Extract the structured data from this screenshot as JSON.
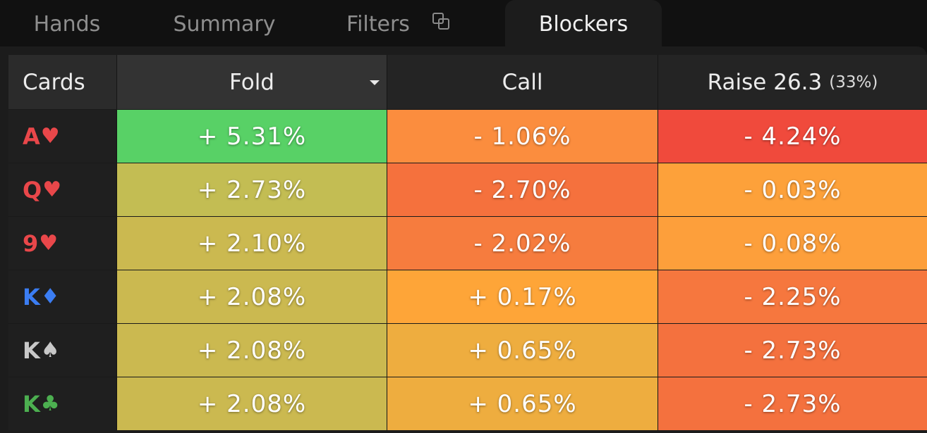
{
  "tabs": [
    {
      "label": "Hands"
    },
    {
      "label": "Summary"
    },
    {
      "label": "Filters"
    },
    {
      "label": "Blockers"
    }
  ],
  "active_tab": "Blockers",
  "table": {
    "headers": {
      "cards": "Cards",
      "fold": "Fold",
      "call": "Call",
      "raise": "Raise 26.3",
      "raise_pct": "(33%)"
    },
    "rows": [
      {
        "rank": "A",
        "suit": "♥",
        "suit_color": "#e9474a",
        "fold": "+ 5.31%",
        "call": "- 1.06%",
        "raise": "- 4.24%",
        "fold_bg": "#58d166",
        "call_bg": "#fb8d3e",
        "raise_bg": "#f04a3c"
      },
      {
        "rank": "Q",
        "suit": "♥",
        "suit_color": "#e9474a",
        "fold": "+ 2.73%",
        "call": "- 2.70%",
        "raise": "- 0.03%",
        "fold_bg": "#c3bd53",
        "call_bg": "#f5713d",
        "raise_bg": "#fda13a"
      },
      {
        "rank": "9",
        "suit": "♥",
        "suit_color": "#e9474a",
        "fold": "+ 2.10%",
        "call": "- 2.02%",
        "raise": "- 0.08%",
        "fold_bg": "#cbb950",
        "call_bg": "#f67c3e",
        "raise_bg": "#fd9f3b"
      },
      {
        "rank": "K",
        "suit": "♦",
        "suit_color": "#3b7df2",
        "fold": "+ 2.08%",
        "call": "+ 0.17%",
        "raise": "- 2.25%",
        "fold_bg": "#cbb950",
        "call_bg": "#fea538",
        "raise_bg": "#f6773e"
      },
      {
        "rank": "K",
        "suit": "♠",
        "suit_color": "#c8c8c8",
        "fold": "+ 2.08%",
        "call": "+ 0.65%",
        "raise": "- 2.73%",
        "fold_bg": "#cbb950",
        "call_bg": "#eead3f",
        "raise_bg": "#f4713e"
      },
      {
        "rank": "K",
        "suit": "♣",
        "suit_color": "#4caf50",
        "fold": "+ 2.08%",
        "call": "+ 0.65%",
        "raise": "- 2.73%",
        "fold_bg": "#cbb950",
        "call_bg": "#eead3f",
        "raise_bg": "#f4713e"
      }
    ]
  },
  "icons": {
    "filters_tab_icon": "copy-icon",
    "fold_sort_icon": "caret-down-icon"
  }
}
